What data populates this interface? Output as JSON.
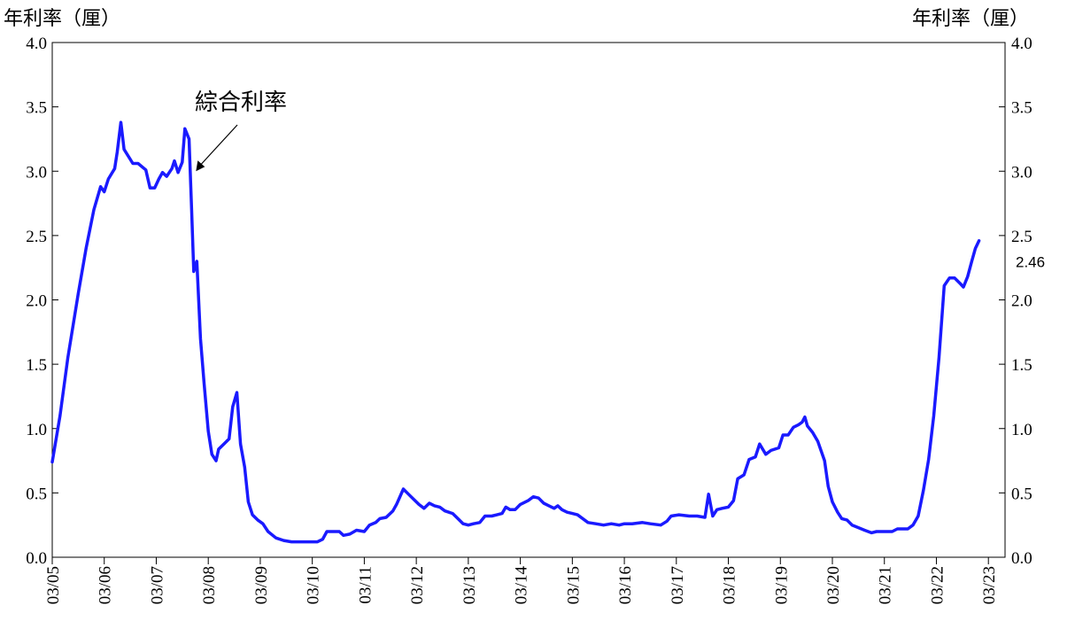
{
  "chart_data": {
    "type": "line",
    "title": "",
    "ylabel_left": "年利率（厘）",
    "ylabel_right": "年利率（厘）",
    "ylim": [
      0,
      4.0
    ],
    "yticks": [
      "0.0",
      "0.5",
      "1.0",
      "1.5",
      "2.0",
      "2.5",
      "3.0",
      "3.5",
      "4.0"
    ],
    "xlim": [
      2005.0,
      2023.32
    ],
    "xticks": [
      "03/05",
      "03/06",
      "03/07",
      "03/08",
      "03/09",
      "03/10",
      "03/11",
      "03/12",
      "03/13",
      "03/14",
      "03/15",
      "03/16",
      "03/17",
      "03/18",
      "03/19",
      "03/20",
      "03/21",
      "03/22",
      "03/23"
    ],
    "grid": false,
    "line_color": "#1a1aff",
    "annotation": {
      "text": "綜合利率",
      "x": 2007.9,
      "y": 3.0
    },
    "last_value_label": "2.46",
    "series": [
      {
        "name": "綜合利率",
        "points": [
          [
            2005.0,
            0.74
          ],
          [
            2005.15,
            1.1
          ],
          [
            2005.3,
            1.55
          ],
          [
            2005.5,
            2.05
          ],
          [
            2005.65,
            2.4
          ],
          [
            2005.8,
            2.7
          ],
          [
            2005.93,
            2.88
          ],
          [
            2006.0,
            2.84
          ],
          [
            2006.08,
            2.94
          ],
          [
            2006.2,
            3.02
          ],
          [
            2006.25,
            3.15
          ],
          [
            2006.32,
            3.38
          ],
          [
            2006.38,
            3.17
          ],
          [
            2006.55,
            3.06
          ],
          [
            2006.65,
            3.06
          ],
          [
            2006.8,
            3.01
          ],
          [
            2006.88,
            2.87
          ],
          [
            2006.97,
            2.87
          ],
          [
            2007.05,
            2.94
          ],
          [
            2007.12,
            2.99
          ],
          [
            2007.2,
            2.96
          ],
          [
            2007.3,
            3.02
          ],
          [
            2007.35,
            3.08
          ],
          [
            2007.42,
            2.99
          ],
          [
            2007.5,
            3.07
          ],
          [
            2007.55,
            3.33
          ],
          [
            2007.63,
            3.25
          ],
          [
            2007.68,
            2.7
          ],
          [
            2007.72,
            2.22
          ],
          [
            2007.78,
            2.3
          ],
          [
            2007.85,
            1.7
          ],
          [
            2007.92,
            1.35
          ],
          [
            2008.0,
            0.98
          ],
          [
            2008.07,
            0.8
          ],
          [
            2008.15,
            0.75
          ],
          [
            2008.2,
            0.84
          ],
          [
            2008.3,
            0.88
          ],
          [
            2008.4,
            0.92
          ],
          [
            2008.47,
            1.17
          ],
          [
            2008.55,
            1.28
          ],
          [
            2008.62,
            0.88
          ],
          [
            2008.7,
            0.7
          ],
          [
            2008.77,
            0.43
          ],
          [
            2008.85,
            0.33
          ],
          [
            2008.95,
            0.29
          ],
          [
            2009.05,
            0.26
          ],
          [
            2009.15,
            0.2
          ],
          [
            2009.3,
            0.15
          ],
          [
            2009.45,
            0.13
          ],
          [
            2009.6,
            0.12
          ],
          [
            2009.8,
            0.12
          ],
          [
            2010.0,
            0.12
          ],
          [
            2010.1,
            0.12
          ],
          [
            2010.2,
            0.14
          ],
          [
            2010.28,
            0.2
          ],
          [
            2010.4,
            0.2
          ],
          [
            2010.52,
            0.2
          ],
          [
            2010.6,
            0.17
          ],
          [
            2010.72,
            0.18
          ],
          [
            2010.85,
            0.21
          ],
          [
            2011.0,
            0.2
          ],
          [
            2011.1,
            0.25
          ],
          [
            2011.22,
            0.27
          ],
          [
            2011.3,
            0.3
          ],
          [
            2011.42,
            0.31
          ],
          [
            2011.55,
            0.36
          ],
          [
            2011.62,
            0.41
          ],
          [
            2011.75,
            0.53
          ],
          [
            2011.85,
            0.49
          ],
          [
            2011.95,
            0.45
          ],
          [
            2012.05,
            0.41
          ],
          [
            2012.15,
            0.38
          ],
          [
            2012.25,
            0.42
          ],
          [
            2012.35,
            0.4
          ],
          [
            2012.45,
            0.39
          ],
          [
            2012.55,
            0.36
          ],
          [
            2012.7,
            0.34
          ],
          [
            2012.8,
            0.3
          ],
          [
            2012.9,
            0.26
          ],
          [
            2013.0,
            0.25
          ],
          [
            2013.1,
            0.26
          ],
          [
            2013.22,
            0.27
          ],
          [
            2013.32,
            0.32
          ],
          [
            2013.45,
            0.32
          ],
          [
            2013.55,
            0.33
          ],
          [
            2013.65,
            0.34
          ],
          [
            2013.72,
            0.39
          ],
          [
            2013.8,
            0.37
          ],
          [
            2013.9,
            0.37
          ],
          [
            2014.0,
            0.41
          ],
          [
            2014.15,
            0.44
          ],
          [
            2014.25,
            0.47
          ],
          [
            2014.35,
            0.46
          ],
          [
            2014.45,
            0.42
          ],
          [
            2014.55,
            0.4
          ],
          [
            2014.65,
            0.38
          ],
          [
            2014.72,
            0.4
          ],
          [
            2014.8,
            0.37
          ],
          [
            2014.9,
            0.35
          ],
          [
            2015.0,
            0.34
          ],
          [
            2015.1,
            0.33
          ],
          [
            2015.2,
            0.3
          ],
          [
            2015.3,
            0.27
          ],
          [
            2015.45,
            0.26
          ],
          [
            2015.6,
            0.25
          ],
          [
            2015.75,
            0.26
          ],
          [
            2015.9,
            0.25
          ],
          [
            2016.0,
            0.26
          ],
          [
            2016.15,
            0.26
          ],
          [
            2016.35,
            0.27
          ],
          [
            2016.5,
            0.26
          ],
          [
            2016.7,
            0.25
          ],
          [
            2016.82,
            0.28
          ],
          [
            2016.9,
            0.32
          ],
          [
            2017.05,
            0.33
          ],
          [
            2017.25,
            0.32
          ],
          [
            2017.4,
            0.32
          ],
          [
            2017.55,
            0.31
          ],
          [
            2017.62,
            0.49
          ],
          [
            2017.7,
            0.32
          ],
          [
            2017.78,
            0.37
          ],
          [
            2017.88,
            0.38
          ],
          [
            2018.0,
            0.39
          ],
          [
            2018.1,
            0.44
          ],
          [
            2018.18,
            0.61
          ],
          [
            2018.3,
            0.64
          ],
          [
            2018.4,
            0.76
          ],
          [
            2018.52,
            0.78
          ],
          [
            2018.6,
            0.88
          ],
          [
            2018.72,
            0.8
          ],
          [
            2018.82,
            0.83
          ],
          [
            2018.97,
            0.85
          ],
          [
            2019.05,
            0.95
          ],
          [
            2019.15,
            0.95
          ],
          [
            2019.25,
            1.01
          ],
          [
            2019.35,
            1.03
          ],
          [
            2019.42,
            1.05
          ],
          [
            2019.47,
            1.09
          ],
          [
            2019.52,
            1.02
          ],
          [
            2019.62,
            0.97
          ],
          [
            2019.72,
            0.9
          ],
          [
            2019.85,
            0.75
          ],
          [
            2019.92,
            0.55
          ],
          [
            2020.0,
            0.43
          ],
          [
            2020.1,
            0.35
          ],
          [
            2020.18,
            0.3
          ],
          [
            2020.28,
            0.29
          ],
          [
            2020.38,
            0.25
          ],
          [
            2020.5,
            0.23
          ],
          [
            2020.62,
            0.21
          ],
          [
            2020.75,
            0.19
          ],
          [
            2020.85,
            0.2
          ],
          [
            2021.0,
            0.2
          ],
          [
            2021.15,
            0.2
          ],
          [
            2021.25,
            0.22
          ],
          [
            2021.35,
            0.22
          ],
          [
            2021.45,
            0.22
          ],
          [
            2021.55,
            0.25
          ],
          [
            2021.65,
            0.32
          ],
          [
            2021.75,
            0.52
          ],
          [
            2021.85,
            0.76
          ],
          [
            2021.95,
            1.1
          ],
          [
            2022.05,
            1.55
          ],
          [
            2022.15,
            2.11
          ],
          [
            2022.25,
            2.17
          ],
          [
            2022.35,
            2.17
          ],
          [
            2022.45,
            2.13
          ],
          [
            2022.52,
            2.1
          ],
          [
            2022.6,
            2.18
          ],
          [
            2022.68,
            2.3
          ],
          [
            2022.75,
            2.4
          ],
          [
            2022.82,
            2.46
          ]
        ]
      }
    ]
  }
}
